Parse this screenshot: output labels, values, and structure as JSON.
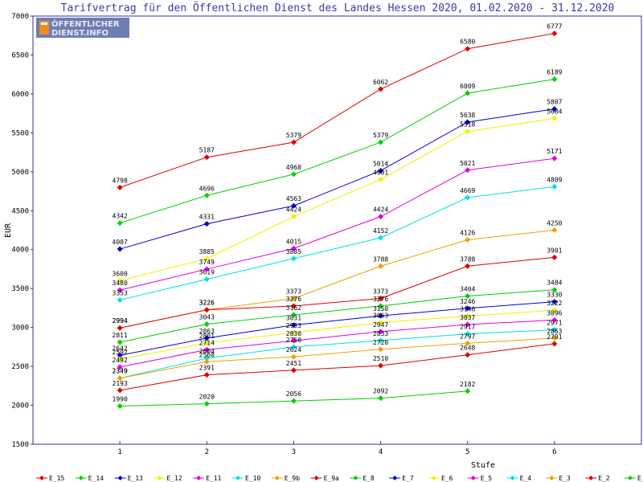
{
  "logo": {
    "line1": "ÖFFENTLICHER",
    "line2": "DIENST.INFO"
  },
  "chart_data": {
    "type": "line",
    "title": "Tarifvertrag für den Öffentlichen Dienst des Landes Hessen 2020, 01.02.2020 - 31.12.2020",
    "xlabel": "Stufe",
    "ylabel": "EUR",
    "x": [
      1,
      2,
      3,
      4,
      5,
      6
    ],
    "xlim": [
      0,
      7
    ],
    "ylim": [
      1500,
      7000
    ],
    "yticks": [
      1500,
      2000,
      2500,
      3000,
      3500,
      4000,
      4500,
      5000,
      5500,
      6000,
      6500,
      7000
    ],
    "legend_position": "bottom",
    "series": [
      {
        "name": "E_15",
        "color": "#e00000",
        "values": [
          4798,
          5187,
          5379,
          6062,
          6580,
          6777
        ]
      },
      {
        "name": "E_14",
        "color": "#00d000",
        "values": [
          4342,
          4696,
          4968,
          5379,
          6009,
          6189
        ]
      },
      {
        "name": "E_13",
        "color": "#0000d0",
        "values": [
          4007,
          4331,
          4563,
          5014,
          5638,
          5807
        ]
      },
      {
        "name": "E_12",
        "color": "#f0f000",
        "values": [
          3600,
          3885,
          4424,
          4901,
          5518,
          5684
        ]
      },
      {
        "name": "E_11",
        "color": "#e000e0",
        "values": [
          3480,
          3749,
          4015,
          4424,
          5021,
          5171
        ]
      },
      {
        "name": "E_10",
        "color": "#00e0e0",
        "values": [
          3353,
          3619,
          3885,
          4152,
          4669,
          4809
        ]
      },
      {
        "name": "E_9b",
        "color": "#f0a000",
        "values": [
          2994,
          3226,
          3373,
          3788,
          4126,
          4250
        ]
      },
      {
        "name": "E_9a",
        "color": "#e00000",
        "values": [
          2994,
          3226,
          3276,
          3373,
          3788,
          3901
        ]
      },
      {
        "name": "E_8",
        "color": "#00d000",
        "values": [
          2811,
          3043,
          3162,
          3276,
          3404,
          3484
        ]
      },
      {
        "name": "E_7",
        "color": "#0000d0",
        "values": [
          2642,
          2863,
          3031,
          3150,
          3246,
          3330
        ]
      },
      {
        "name": "E_6",
        "color": "#f0f000",
        "values": [
          2592,
          2801,
          2933,
          3063,
          3146,
          3222
        ]
      },
      {
        "name": "E_5",
        "color": "#e000e0",
        "values": [
          2492,
          2714,
          2830,
          2947,
          3037,
          3096
        ]
      },
      {
        "name": "E_4",
        "color": "#00e0e0",
        "values": [
          2349,
          2604,
          2750,
          2833,
          2917,
          2971
        ]
      },
      {
        "name": "E_3",
        "color": "#f0a000",
        "values": [
          2349,
          2560,
          2624,
          2720,
          2797,
          2863
        ]
      },
      {
        "name": "E_2",
        "color": "#e00000",
        "values": [
          2193,
          2391,
          2451,
          2510,
          2648,
          2791
        ]
      },
      {
        "name": "E_1",
        "color": "#00d000",
        "values": [
          1990,
          2020,
          2056,
          2092,
          2182,
          null
        ]
      }
    ]
  }
}
